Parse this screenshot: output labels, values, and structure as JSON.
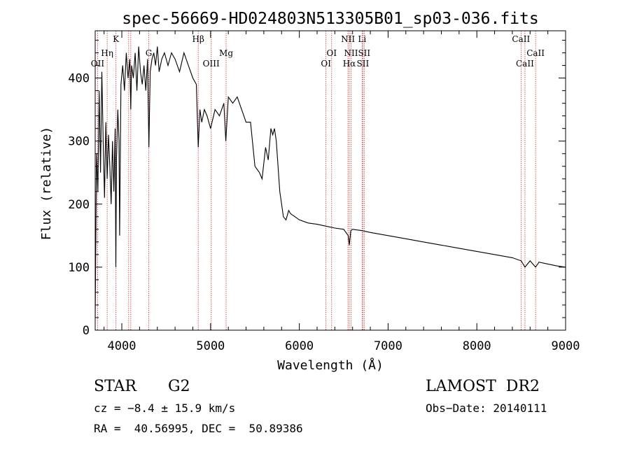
{
  "chart_data": {
    "type": "line",
    "title": "spec-56669-HD024803N513305B01_sp03-036.fits",
    "xlabel": "Wavelength (Å)",
    "ylabel": "Flux (relative)",
    "xlim": [
      3700,
      9000
    ],
    "ylim": [
      0,
      475
    ],
    "xticks": [
      4000,
      5000,
      6000,
      7000,
      8000,
      9000
    ],
    "yticks": [
      0,
      100,
      200,
      300,
      400
    ],
    "line_color": "#000000",
    "marker_color": "#cc3333",
    "series": [
      {
        "x": [
          3700,
          3715,
          3730,
          3745,
          3760,
          3775,
          3790,
          3805,
          3820,
          3835,
          3850,
          3865,
          3880,
          3895,
          3910,
          3925,
          3933,
          3940,
          3955,
          3968,
          3975,
          3990,
          4010,
          4030,
          4050,
          4070,
          4090,
          4101,
          4110,
          4130,
          4150,
          4170,
          4190,
          4210,
          4230,
          4250,
          4270,
          4290,
          4305,
          4320,
          4340,
          4360,
          4380,
          4400,
          4420,
          4450,
          4480,
          4520,
          4560,
          4600,
          4650,
          4700,
          4750,
          4800,
          4840,
          4861,
          4880,
          4900,
          4930,
          4960,
          5000,
          5050,
          5100,
          5150,
          5172,
          5200,
          5250,
          5300,
          5350,
          5400,
          5450,
          5500,
          5550,
          5580,
          5620,
          5650,
          5680,
          5700,
          5720,
          5740,
          5760,
          5780,
          5800,
          5820,
          5850,
          5880,
          5900,
          5950,
          6000,
          6100,
          6200,
          6300,
          6400,
          6500,
          6550,
          6563,
          6580,
          6600,
          6700,
          6800,
          7000,
          7200,
          7400,
          7600,
          7800,
          8000,
          8200,
          8400,
          8500,
          8542,
          8600,
          8662,
          8700,
          8800,
          8900,
          9000
        ],
        "y": [
          20,
          280,
          220,
          380,
          250,
          410,
          300,
          210,
          330,
          240,
          310,
          260,
          200,
          300,
          220,
          320,
          100,
          270,
          350,
          300,
          150,
          390,
          420,
          380,
          440,
          400,
          430,
          350,
          420,
          400,
          440,
          380,
          450,
          410,
          390,
          420,
          380,
          430,
          290,
          410,
          430,
          440,
          420,
          450,
          410,
          430,
          440,
          420,
          440,
          430,
          410,
          440,
          420,
          400,
          390,
          290,
          350,
          330,
          350,
          340,
          320,
          350,
          340,
          360,
          300,
          370,
          360,
          370,
          350,
          330,
          330,
          260,
          250,
          240,
          290,
          270,
          320,
          310,
          320,
          300,
          260,
          220,
          200,
          180,
          175,
          190,
          185,
          180,
          175,
          170,
          168,
          165,
          162,
          160,
          150,
          135,
          158,
          160,
          158,
          155,
          150,
          145,
          140,
          135,
          130,
          125,
          120,
          115,
          110,
          100,
          110,
          100,
          108,
          105,
          102,
          100
        ]
      }
    ],
    "lines": [
      {
        "x": 3727,
        "label": "OII"
      },
      {
        "x": 3835,
        "label": "Hη"
      },
      {
        "x": 3934,
        "label": "K"
      },
      {
        "x": 4077,
        "label": ""
      },
      {
        "x": 4101,
        "label": ""
      },
      {
        "x": 4304,
        "label": "G"
      },
      {
        "x": 4861,
        "label": "Hβ"
      },
      {
        "x": 5007,
        "label": "OIII"
      },
      {
        "x": 5175,
        "label": "Mg"
      },
      {
        "x": 6300,
        "label": "OI"
      },
      {
        "x": 6364,
        "label": "OI"
      },
      {
        "x": 6548,
        "label": "NII"
      },
      {
        "x": 6563,
        "label": "Hα"
      },
      {
        "x": 6583,
        "label": "NII"
      },
      {
        "x": 6707,
        "label": "Li"
      },
      {
        "x": 6716,
        "label": "SII"
      },
      {
        "x": 6731,
        "label": "SII"
      },
      {
        "x": 8498,
        "label": "CaII"
      },
      {
        "x": 8542,
        "label": "CaII"
      },
      {
        "x": 8662,
        "label": "CaII"
      }
    ]
  },
  "info": {
    "object_type": "STAR",
    "subclass": "G2",
    "survey": "LAMOST  DR2",
    "cz": "cz = −8.4 ± 15.9 km/s",
    "obs_date": "Obs−Date: 20140111",
    "coords": "RA =  40.56995, DEC =  50.89386"
  }
}
